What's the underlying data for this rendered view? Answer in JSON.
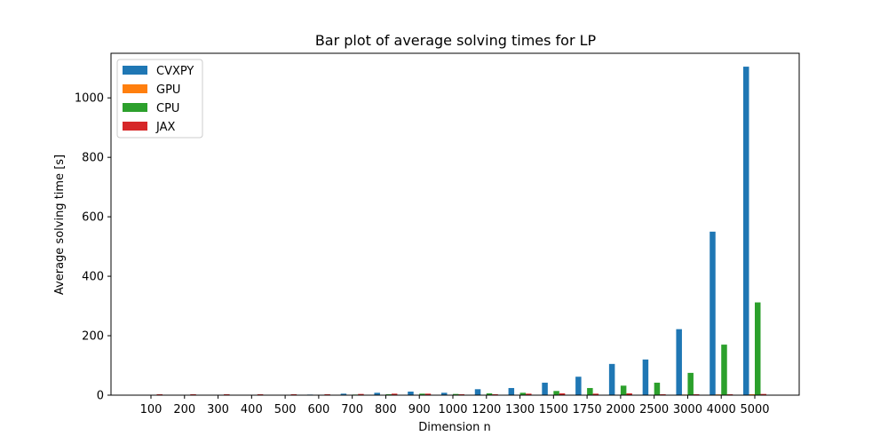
{
  "chart_data": {
    "type": "bar",
    "title": "Bar plot of average solving times for LP",
    "xlabel": "Dimension n",
    "ylabel": "Average solving time [s]",
    "ylim": [
      0,
      1150
    ],
    "yticks": [
      0,
      200,
      400,
      600,
      800,
      1000
    ],
    "categories": [
      "100",
      "200",
      "300",
      "400",
      "500",
      "600",
      "700",
      "800",
      "900",
      "1000",
      "1200",
      "1300",
      "1500",
      "1750",
      "2000",
      "2500",
      "3000",
      "4000",
      "5000"
    ],
    "legend_position": "top-left",
    "grid": false,
    "series": [
      {
        "name": "CVXPY",
        "color": "#1f77b4",
        "values": [
          0.5,
          0.6,
          0.8,
          1.0,
          1.5,
          2,
          5,
          8,
          12,
          8,
          20,
          24,
          42,
          62,
          105,
          120,
          222,
          550,
          1105
        ]
      },
      {
        "name": "GPU",
        "color": "#ff7f0e",
        "values": [
          0.2,
          0.2,
          0.2,
          0.3,
          0.3,
          0.3,
          0.4,
          0.4,
          0.5,
          0.5,
          0.6,
          0.7,
          0.9,
          1.0,
          1.2,
          1.5,
          2.0,
          2.5,
          3.0
        ]
      },
      {
        "name": "CPU",
        "color": "#2ca02c",
        "values": [
          0.3,
          0.4,
          0.5,
          0.6,
          0.8,
          1.0,
          2,
          3,
          5,
          4,
          6,
          8,
          14,
          24,
          32,
          42,
          75,
          170,
          312
        ]
      },
      {
        "name": "JAX",
        "color": "#d62728",
        "values": [
          3,
          3,
          3,
          3,
          3,
          3,
          4,
          5,
          5,
          3,
          3,
          5,
          6,
          5,
          6,
          3,
          3,
          3,
          4
        ]
      }
    ]
  }
}
